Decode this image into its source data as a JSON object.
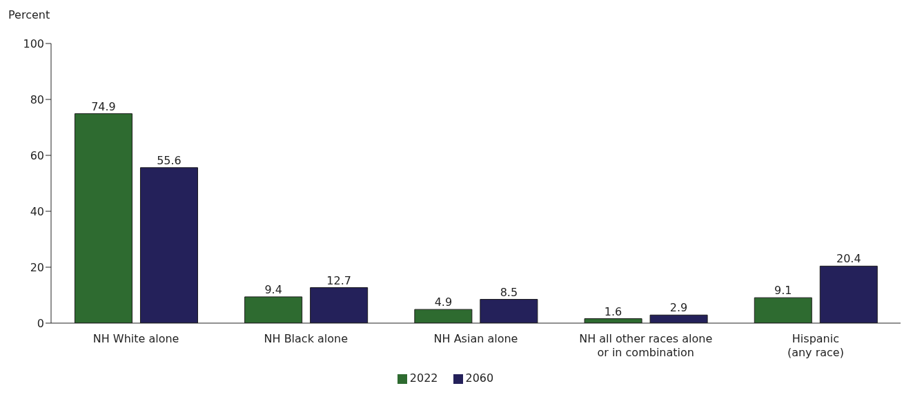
{
  "chart_data": {
    "type": "bar",
    "ylabel": "Percent",
    "categories": [
      "NH White alone",
      "NH Black alone",
      "NH Asian alone",
      "NH all other races alone\nor in combination",
      "Hispanic\n(any race)"
    ],
    "series": [
      {
        "name": "2022",
        "color": "#2e6b30",
        "values": [
          74.9,
          9.4,
          4.9,
          1.6,
          9.1
        ]
      },
      {
        "name": "2060",
        "color": "#24215a",
        "values": [
          55.6,
          12.7,
          8.5,
          2.9,
          20.4
        ]
      }
    ],
    "ylim": [
      0,
      100
    ],
    "yticks": [
      0,
      20,
      40,
      60,
      80,
      100
    ],
    "data_labels": true,
    "grid": false,
    "legend": "bottom"
  }
}
